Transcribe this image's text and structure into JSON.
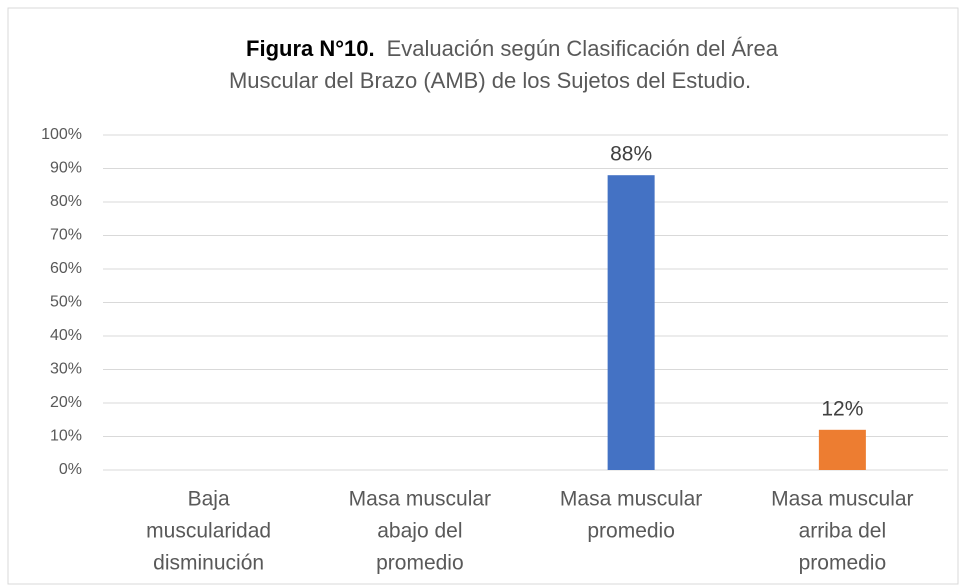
{
  "chart_data": {
    "type": "bar",
    "title": "Figura N°10.",
    "subtitle": [
      "Evaluación según Clasificación del Área",
      "Muscular del Brazo (AMB) de los Sujetos del Estudio."
    ],
    "categories": [
      [
        "Baja",
        "muscularidad",
        "disminución"
      ],
      [
        "Masa muscular",
        "abajo del",
        "promedio"
      ],
      [
        "Masa muscular",
        "promedio"
      ],
      [
        "Masa muscular",
        "arriba del",
        "promedio"
      ]
    ],
    "values": [
      0,
      0,
      88,
      12
    ],
    "value_labels": [
      null,
      null,
      "88%",
      "12%"
    ],
    "colors": [
      "#4472c4",
      "#4472c4",
      "#4472c4",
      "#ed7d31"
    ],
    "ylim": [
      0,
      100
    ],
    "yticks": [
      {
        "value": 0,
        "label": "0%"
      },
      {
        "value": 10,
        "label": "10%"
      },
      {
        "value": 20,
        "label": "20%"
      },
      {
        "value": 30,
        "label": "30%"
      },
      {
        "value": 40,
        "label": "40%"
      },
      {
        "value": 50,
        "label": "50%"
      },
      {
        "value": 60,
        "label": "60%"
      },
      {
        "value": 70,
        "label": "70%"
      },
      {
        "value": 80,
        "label": "80%"
      },
      {
        "value": 90,
        "label": "90%"
      },
      {
        "value": 100,
        "label": "100%"
      }
    ],
    "grid": true
  }
}
